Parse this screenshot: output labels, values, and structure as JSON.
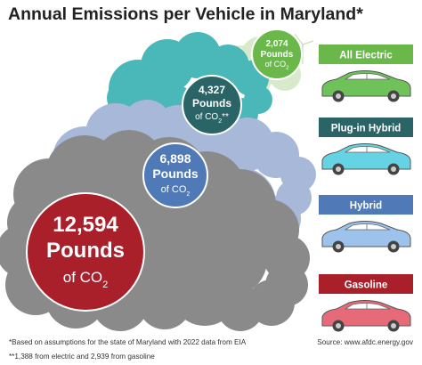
{
  "chart_data": {
    "type": "bar",
    "title": "Annual Emissions per Vehicle in Maryland*",
    "categories": [
      "All Electric",
      "Plug-in Hybrid",
      "Hybrid",
      "Gasoline"
    ],
    "values": [
      2074,
      4327,
      6898,
      12594
    ],
    "value_labels": [
      {
        "number": "2,074",
        "line2": "Pounds",
        "line3": "of CO",
        "sub": "2",
        "suffix": ""
      },
      {
        "number": "4,327",
        "line2": "Pounds",
        "line3": "of CO",
        "sub": "2",
        "suffix": "**"
      },
      {
        "number": "6,898",
        "line2": "Pounds",
        "line3": "of CO",
        "sub": "2",
        "suffix": ""
      },
      {
        "number": "12,594",
        "line2": "Pounds",
        "line3": "of CO",
        "sub": "2",
        "suffix": ""
      }
    ],
    "unit": "Pounds of CO2",
    "colors": {
      "All Electric": "#6ab74a",
      "Plug-in Hybrid": "#2b6466",
      "Hybrid": "#4f79b7",
      "Gasoline": "#a91f2a"
    },
    "cloud_colors": {
      "All Electric": "#d8eacb",
      "Plug-in Hybrid": "#4ab8b8",
      "Hybrid": "#a8b8d8",
      "Gasoline": "#8a8a8a"
    },
    "car_colors": {
      "All Electric": "#6fc25a",
      "Plug-in Hybrid": "#66d3e4",
      "Hybrid": "#9dc2ec",
      "Gasoline": "#e66a78"
    }
  },
  "footnotes": {
    "note1": "*Based on assumptions for the state of Maryland with 2022 data from EIA",
    "note2": "**1,388 from electric and 2,939 from gasoline",
    "source": "Source: www.afdc.energy.gov"
  }
}
